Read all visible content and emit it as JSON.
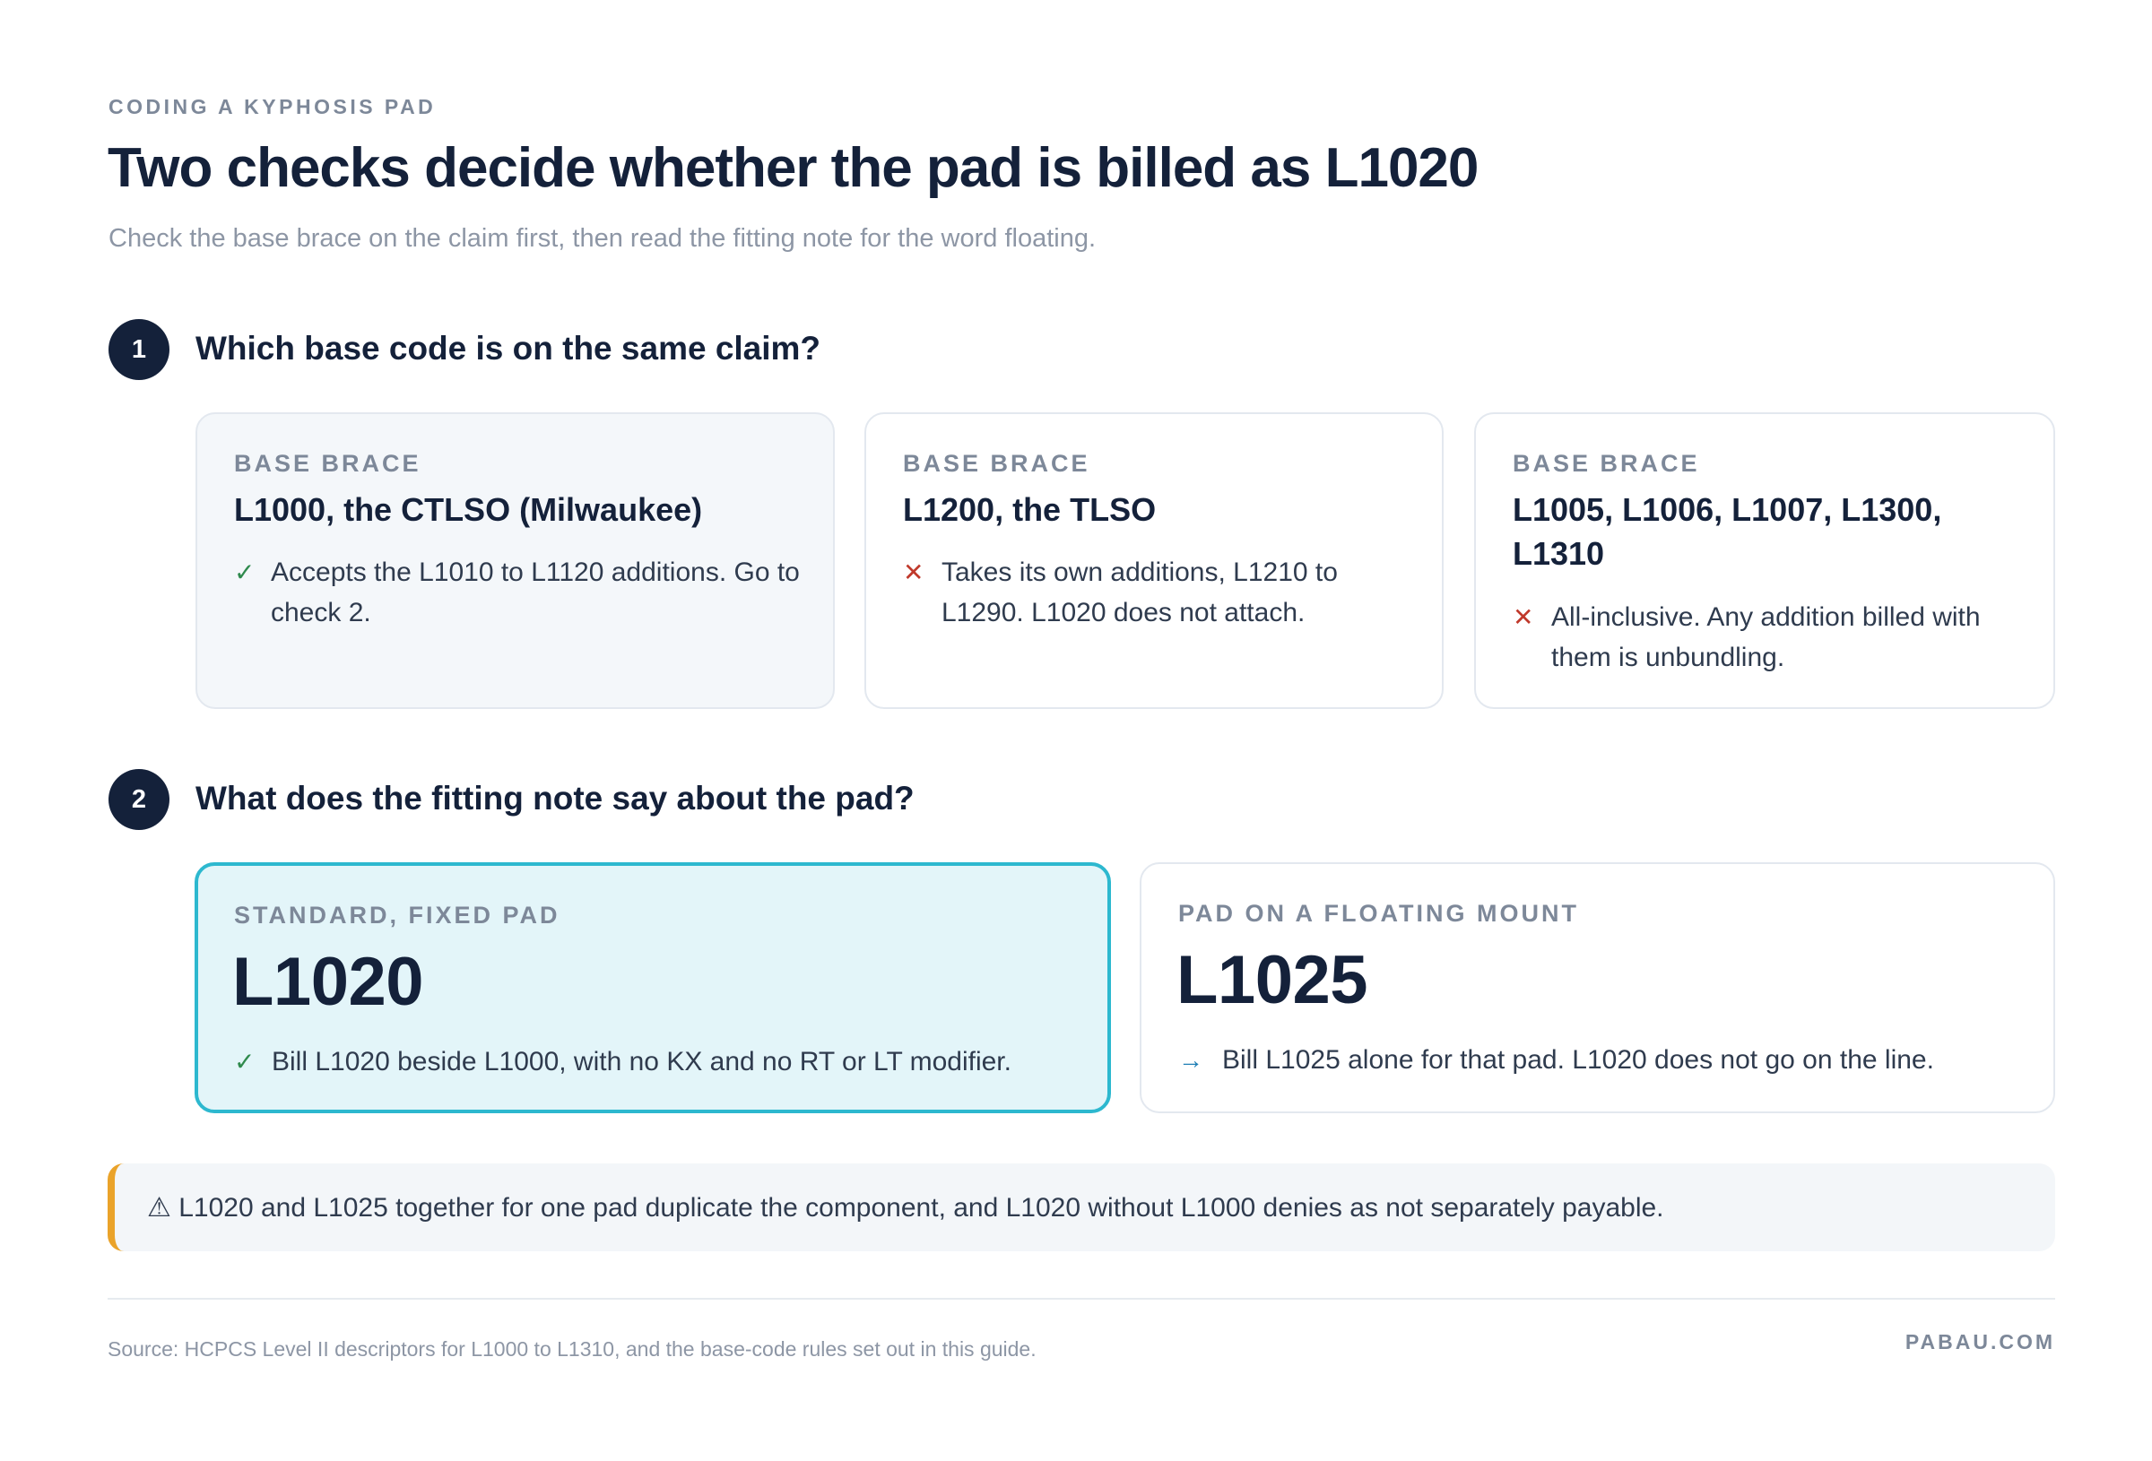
{
  "header": {
    "eyebrow": "CODING A KYPHOSIS PAD",
    "title": "Two checks decide whether the pad is billed as L1020",
    "subtitle": "Check the base brace on the claim first, then read the fitting note for the word floating."
  },
  "check1": {
    "number": "1",
    "question": "Which base code is on the same claim?",
    "cards": [
      {
        "label": "BASE BRACE",
        "code": "L1000, the CTLSO (Milwaukee)",
        "result": "accept",
        "mark_icon": "check-icon",
        "text": "Accepts the L1010 to L1120 additions. Go to check 2."
      },
      {
        "label": "BASE BRACE",
        "code": "L1200, the TLSO",
        "result": "reject",
        "mark_icon": "x-icon",
        "text": "Takes its own additions, L1210 to L1290. L1020 does not attach."
      },
      {
        "label": "BASE BRACE",
        "code": "L1005, L1006, L1007, L1300, L1310",
        "result": "reject",
        "mark_icon": "x-icon",
        "text": "All-inclusive. Any addition billed with them is unbundling."
      }
    ]
  },
  "check2": {
    "number": "2",
    "question": "What does the fitting note say about the pad?",
    "cards": [
      {
        "label": "STANDARD, FIXED PAD",
        "code": "L1020",
        "mark_icon": "check-icon",
        "text": "Bill L1020 beside L1000, with no KX and no RT or LT modifier."
      },
      {
        "label": "PAD ON A FLOATING MOUNT",
        "code": "L1025",
        "mark_icon": "arrow-right-icon",
        "text": "Bill L1025 alone for that pad. L1020 does not go on the line."
      }
    ]
  },
  "callout": {
    "icon": "warning-icon",
    "text": "⚠ L1020 and L1025 together for one pad duplicate the component, and L1020 without L1000 denies as not separately payable."
  },
  "footer": {
    "source": "Source: HCPCS Level II descriptors for L1000 to L1310, and the base-code rules set out in this guide.",
    "brand": "PABAU.COM"
  },
  "colors": {
    "navy": "#14213a",
    "accept": "#2f8a4d",
    "reject": "#c0392b",
    "arrow": "#1f7fb5",
    "chosen_border": "#2db8cf",
    "chosen_fill": "#e3f5f9",
    "warning": "#eaa32a"
  }
}
